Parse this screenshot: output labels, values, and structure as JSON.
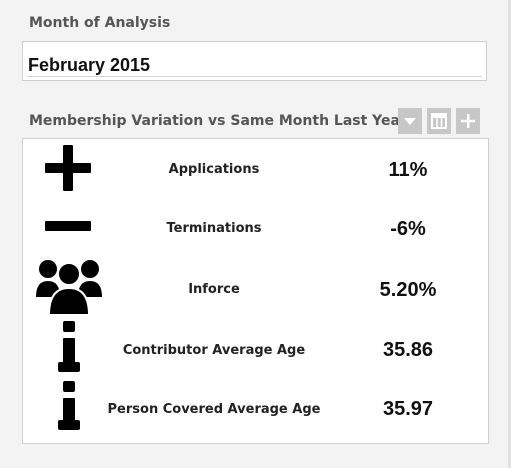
{
  "month_section": {
    "label": "Month of Analysis",
    "value": "February 2015"
  },
  "panel": {
    "title": "Membership Variation vs Same Month Last Year",
    "toolbar": [
      {
        "icon": "chevron-down-icon"
      },
      {
        "icon": "columns-icon"
      },
      {
        "icon": "plus-icon"
      }
    ],
    "rows": [
      {
        "icon": "plus-icon",
        "label": "Applications",
        "value": "11%"
      },
      {
        "icon": "minus-icon",
        "label": "Terminations",
        "value": "-6%"
      },
      {
        "icon": "group-icon",
        "label": "Inforce",
        "value": "5.20%"
      },
      {
        "icon": "info-icon",
        "label": "Contributor Average Age",
        "value": "35.86"
      },
      {
        "icon": "info-icon",
        "label": "Person Covered Average Age",
        "value": "35.97"
      }
    ]
  }
}
